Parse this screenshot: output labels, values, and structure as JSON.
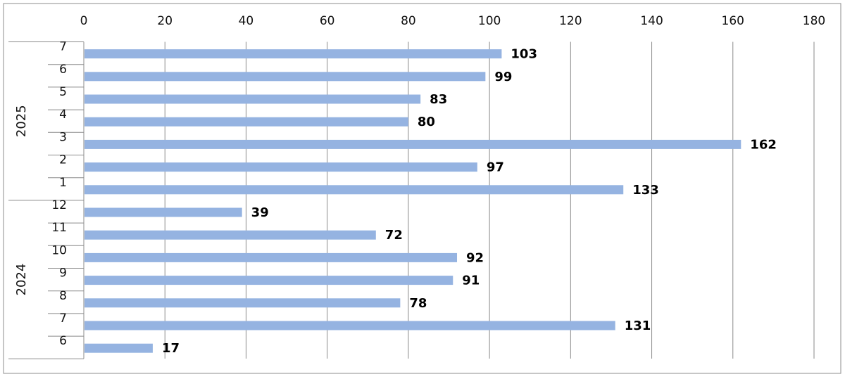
{
  "chart_data": {
    "type": "bar",
    "orientation": "horizontal",
    "xlim": [
      0,
      180
    ],
    "x_ticks": [
      0,
      20,
      40,
      60,
      80,
      100,
      120,
      140,
      160,
      180
    ],
    "x_tick_labels": [
      "0",
      "20",
      "40",
      "60",
      "80",
      "100",
      "120",
      "140",
      "160",
      "180"
    ],
    "axis_position": "top",
    "grid": "vertical",
    "bar_color": "#95b3e1",
    "groups": [
      {
        "label": "2025",
        "categories": [
          "7",
          "6",
          "5",
          "4",
          "3",
          "2",
          "1"
        ],
        "values": [
          103,
          99,
          83,
          80,
          162,
          97,
          133
        ]
      },
      {
        "label": "2024",
        "categories": [
          "12",
          "11",
          "10",
          "9",
          "8",
          "7",
          "6"
        ],
        "values": [
          39,
          72,
          92,
          91,
          78,
          131,
          17
        ]
      }
    ]
  }
}
